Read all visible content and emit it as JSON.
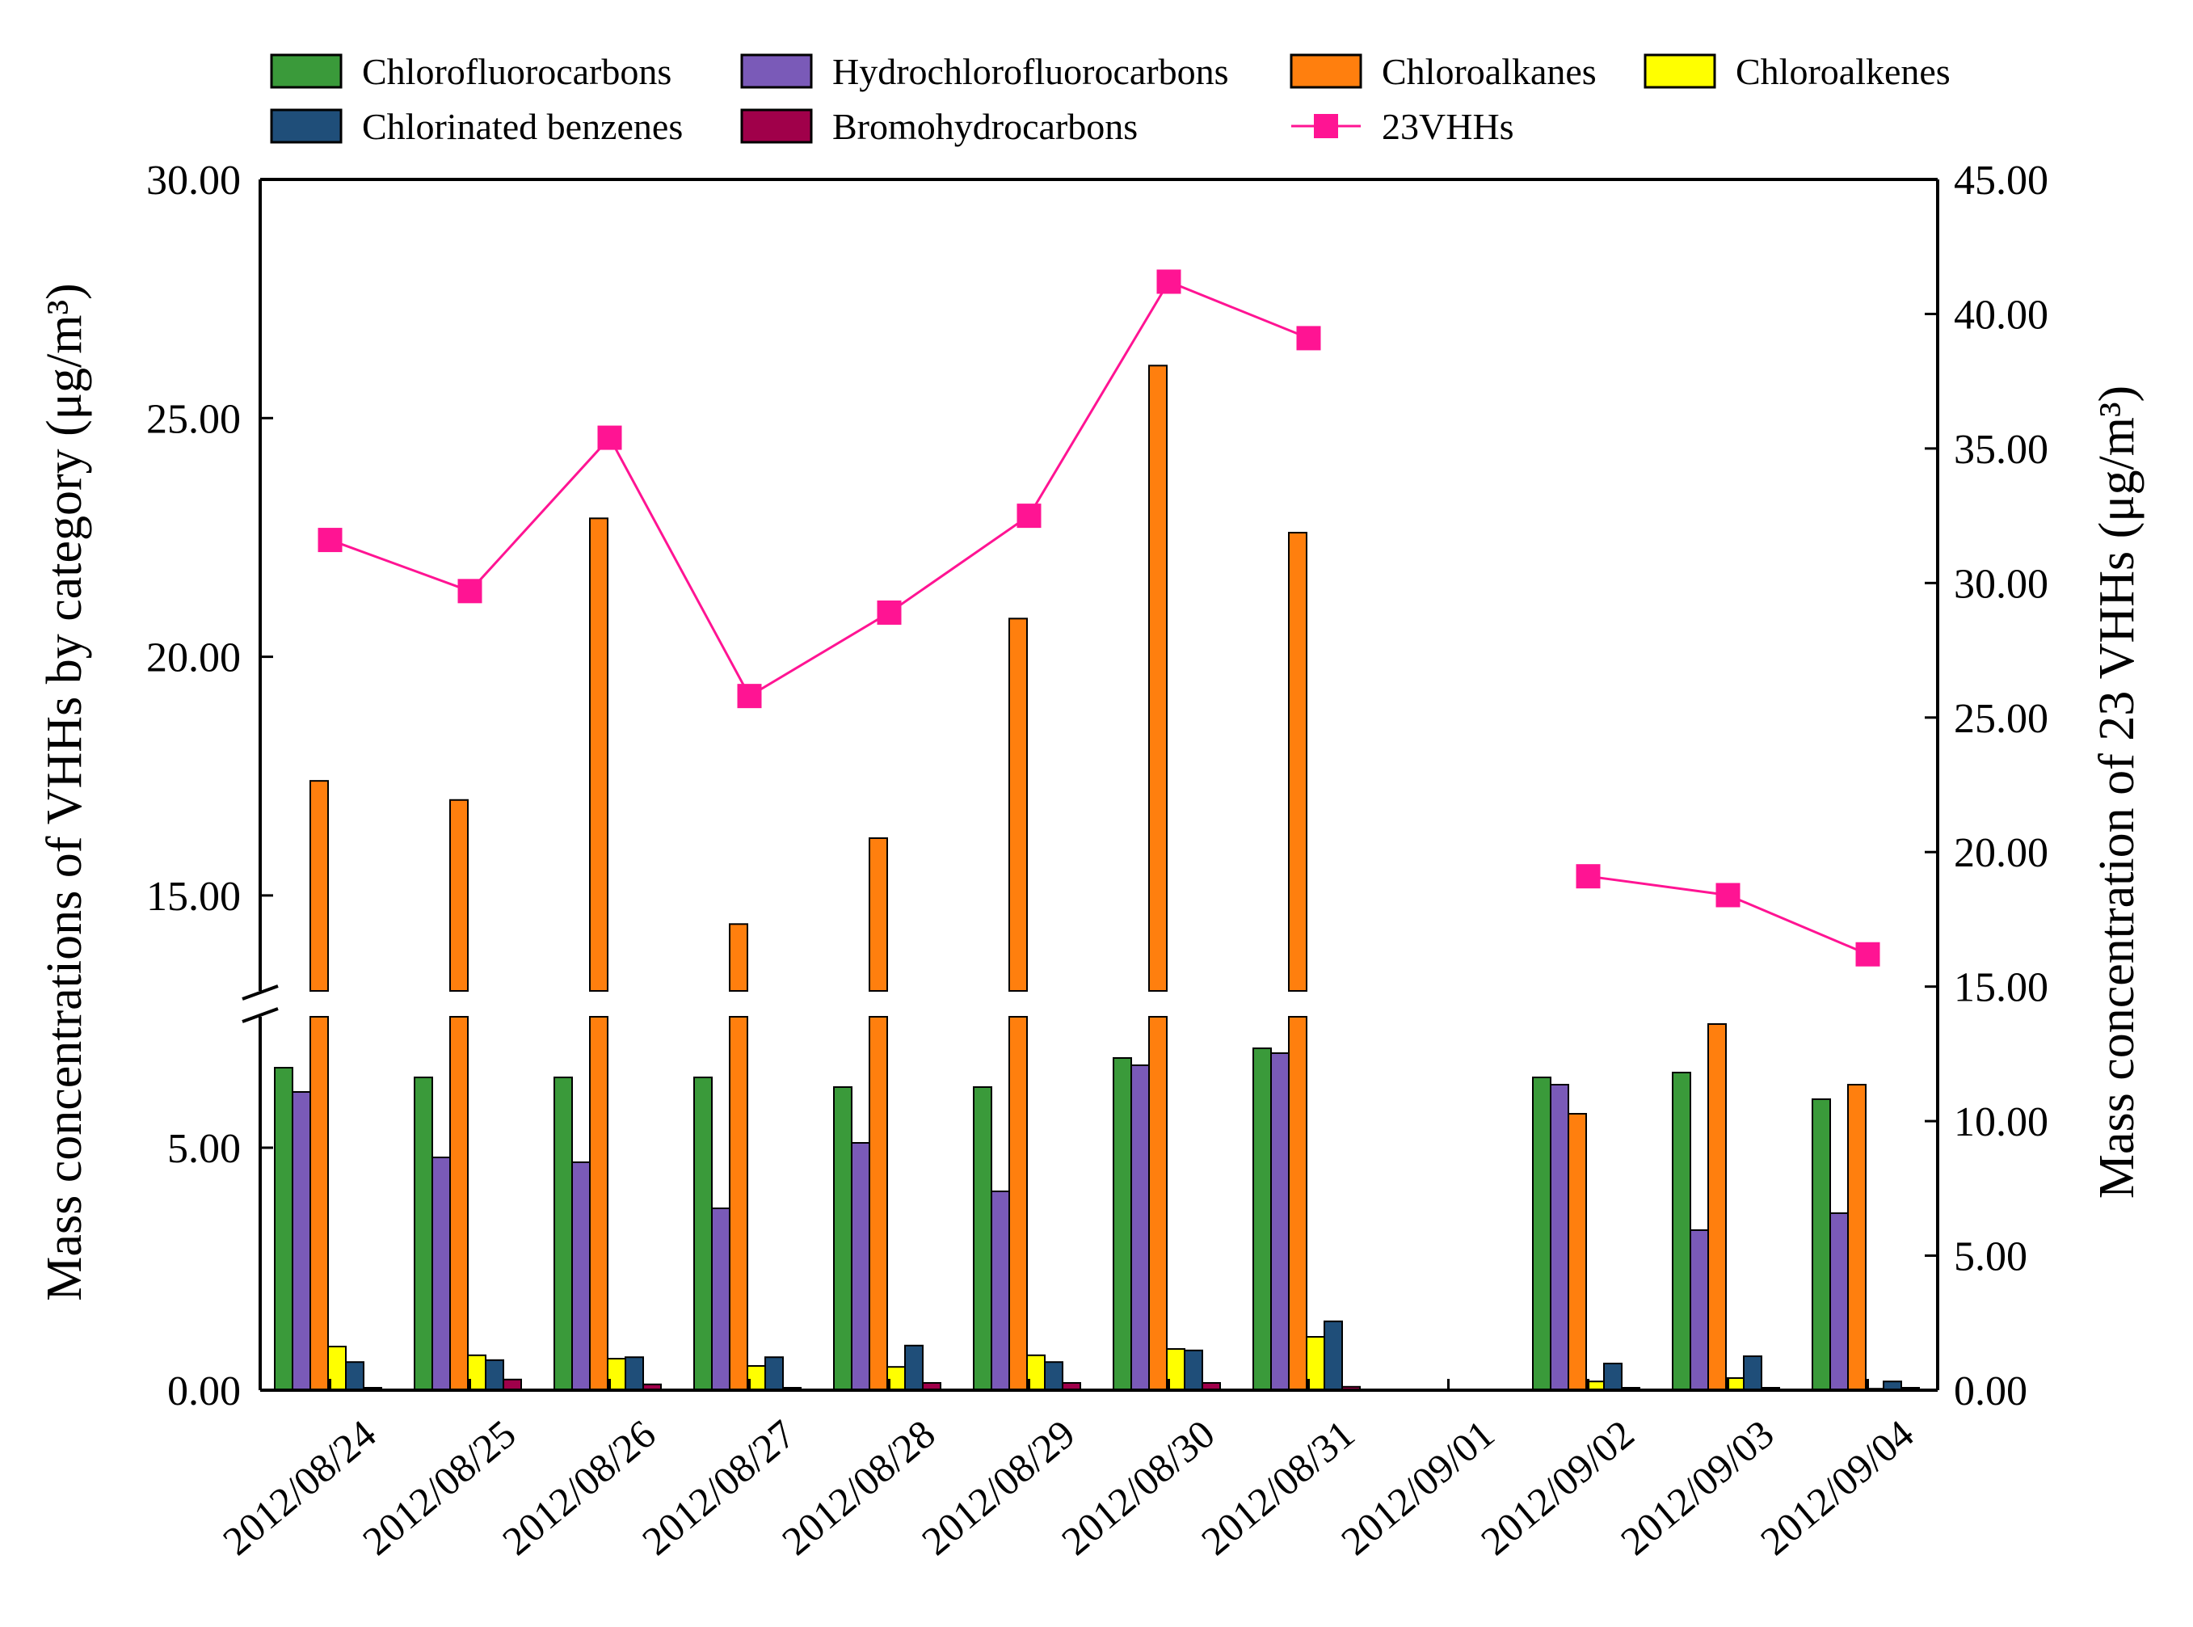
{
  "chart_data": {
    "type": "bar",
    "categories": [
      "2012/08/24",
      "2012/08/25",
      "2012/08/26",
      "2012/08/27",
      "2012/08/28",
      "2012/08/29",
      "2012/08/30",
      "2012/08/31",
      "2012/09/01",
      "2012/09/02",
      "2012/09/03",
      "2012/09/04"
    ],
    "series": [
      {
        "name": "Chlorofluorocarbons",
        "color": "#3a9a3a",
        "values": [
          6.65,
          6.45,
          6.45,
          6.45,
          6.25,
          6.25,
          6.85,
          7.05,
          0,
          6.45,
          6.55,
          6.0
        ]
      },
      {
        "name": "Hydrochlorofluorocarbons",
        "color": "#7a5ab8",
        "values": [
          6.15,
          4.8,
          4.7,
          3.75,
          5.1,
          4.1,
          6.7,
          6.95,
          0,
          6.3,
          3.3,
          3.65
        ]
      },
      {
        "name": "Chloroalkanes",
        "color": "#ff7f0e",
        "values": [
          17.4,
          17.0,
          22.9,
          14.4,
          16.2,
          20.8,
          26.1,
          22.6,
          0,
          5.7,
          7.55,
          6.3
        ]
      },
      {
        "name": "Chloroalkenes",
        "color": "#ffff00",
        "values": [
          0.9,
          0.72,
          0.65,
          0.5,
          0.48,
          0.72,
          0.85,
          1.1,
          0,
          0.18,
          0.25,
          0.03
        ]
      },
      {
        "name": "Chlorinated benzenes",
        "color": "#1f4e79",
        "values": [
          0.58,
          0.62,
          0.68,
          0.68,
          0.92,
          0.58,
          0.82,
          1.42,
          0,
          0.55,
          0.7,
          0.18
        ]
      },
      {
        "name": "Bromohydrocarbons",
        "color": "#a0004a",
        "values": [
          0.05,
          0.22,
          0.12,
          0.05,
          0.15,
          0.15,
          0.15,
          0.07,
          0,
          0.05,
          0.05,
          0.05
        ]
      }
    ],
    "line_series": {
      "name": "23VHHs",
      "color": "#ff1493",
      "axis": "right",
      "values": [
        31.6,
        29.7,
        35.4,
        25.8,
        28.9,
        32.5,
        41.2,
        39.1,
        null,
        19.1,
        18.4,
        16.2
      ]
    },
    "left_axis": {
      "ylabel": "Mass concentrations of  VHHs by category (μg/m³)",
      "lower_range": [
        0,
        7.7
      ],
      "upper_range": [
        13.0,
        30.0
      ],
      "break": true,
      "ticks": [
        {
          "value": 0,
          "label": "0.00"
        },
        {
          "value": 5,
          "label": "5.00"
        },
        {
          "value": 15,
          "label": "15.00"
        },
        {
          "value": 20,
          "label": "20.00"
        },
        {
          "value": 25,
          "label": "25.00"
        },
        {
          "value": 30,
          "label": "30.00"
        }
      ]
    },
    "right_axis": {
      "ylabel": "Mass concentration of 23 VHHs (μg/m³)",
      "ylim": [
        0,
        45
      ],
      "ticks": [
        "0.00",
        "5.00",
        "10.00",
        "15.00",
        "20.00",
        "25.00",
        "30.00",
        "35.00",
        "40.00",
        "45.00"
      ]
    },
    "legend_position": "top",
    "grid": false
  }
}
